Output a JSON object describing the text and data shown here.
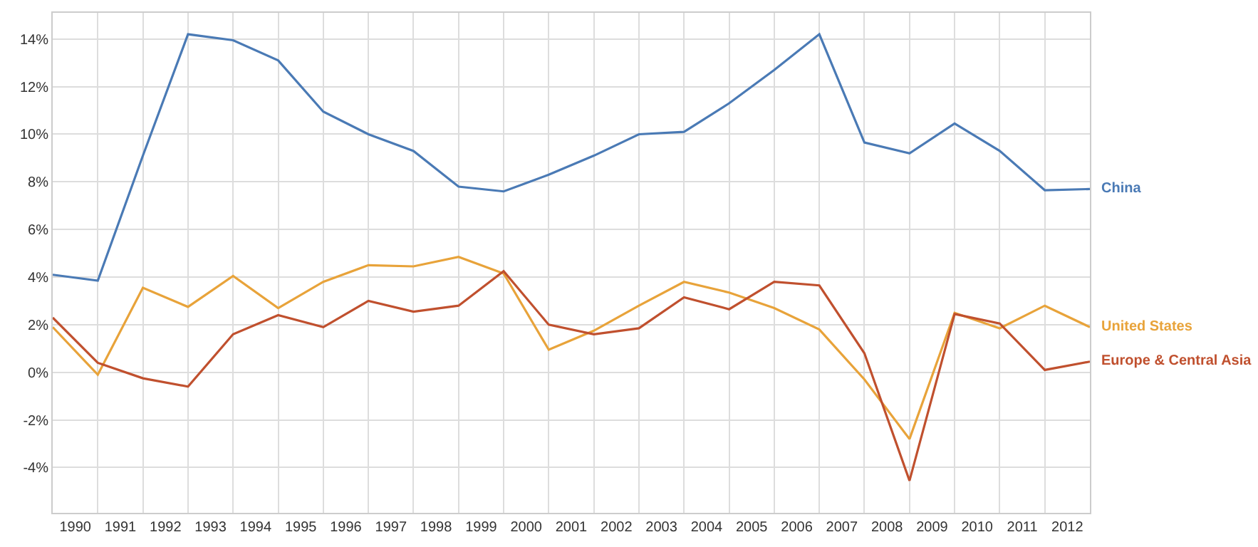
{
  "chart_data": {
    "type": "line",
    "x": [
      1989.5,
      1990.5,
      1991.5,
      1992.5,
      1993.5,
      1994.5,
      1995.5,
      1996.5,
      1997.5,
      1998.5,
      1999.5,
      2000.5,
      2001.5,
      2002.5,
      2003.5,
      2004.5,
      2005.5,
      2006.5,
      2007.5,
      2008.5,
      2009.5,
      2010.5,
      2011.5,
      2012.5
    ],
    "xlim": [
      1989.5,
      2012.5
    ],
    "xticks": [
      1990,
      1991,
      1992,
      1993,
      1994,
      1995,
      1996,
      1997,
      1998,
      1999,
      2000,
      2001,
      2002,
      2003,
      2004,
      2005,
      2006,
      2007,
      2008,
      2009,
      2010,
      2011,
      2012
    ],
    "ylim": [
      -5.9,
      15.1
    ],
    "yticks": [
      {
        "value": -4,
        "label": "-4%"
      },
      {
        "value": -2,
        "label": "-2%"
      },
      {
        "value": 0,
        "label": "0%"
      },
      {
        "value": 2,
        "label": "2%"
      },
      {
        "value": 4,
        "label": "4%"
      },
      {
        "value": 6,
        "label": "6%"
      },
      {
        "value": 8,
        "label": "8%"
      },
      {
        "value": 10,
        "label": "10%"
      },
      {
        "value": 12,
        "label": "12%"
      },
      {
        "value": 14,
        "label": "14%"
      }
    ],
    "grid": true,
    "legend": "right",
    "marker": "none",
    "line_style": "solid",
    "series": [
      {
        "name": "China",
        "color": "#4a7ab5",
        "values": [
          4.1,
          3.85,
          9.1,
          14.2,
          13.95,
          13.1,
          10.95,
          10.0,
          9.3,
          7.8,
          7.6,
          8.3,
          9.1,
          10.0,
          10.1,
          11.3,
          12.7,
          14.2,
          9.65,
          9.2,
          10.45,
          9.3,
          7.65,
          7.7
        ]
      },
      {
        "name": "United States",
        "color": "#e8a33a",
        "values": [
          1.9,
          -0.1,
          3.55,
          2.75,
          4.05,
          2.7,
          3.8,
          4.5,
          4.45,
          4.85,
          4.15,
          0.95,
          1.75,
          2.8,
          3.8,
          3.35,
          2.7,
          1.8,
          -0.3,
          -2.8,
          2.5,
          1.85,
          2.8,
          1.9
        ]
      },
      {
        "name": "Europe & Central Asia",
        "color": "#c0502e",
        "values": [
          2.3,
          0.4,
          -0.25,
          -0.6,
          1.6,
          2.4,
          1.9,
          3.0,
          2.55,
          2.8,
          4.25,
          2.0,
          1.6,
          1.85,
          3.15,
          2.65,
          3.8,
          3.65,
          0.8,
          -4.55,
          2.45,
          2.05,
          0.1,
          0.45
        ]
      }
    ]
  }
}
